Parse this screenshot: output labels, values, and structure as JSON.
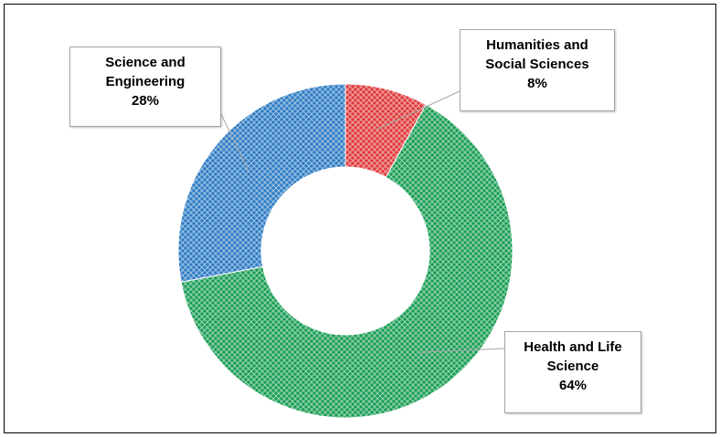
{
  "chart_data": {
    "type": "pie",
    "variant": "doughnut",
    "title": "",
    "slices": [
      {
        "label_lines": [
          "Humanities and",
          "Social Sciences"
        ],
        "value": 8,
        "value_label": "8%",
        "color": "#e03a3a"
      },
      {
        "label_lines": [
          "Health and Life",
          "Science"
        ],
        "value": 64,
        "value_label": "64%",
        "color": "#1a9e55"
      },
      {
        "label_lines": [
          "Science and",
          "Engineering"
        ],
        "value": 28,
        "value_label": "28%",
        "color": "#2e7cc4"
      }
    ],
    "legend": "none",
    "fill_pattern": "lattice"
  }
}
